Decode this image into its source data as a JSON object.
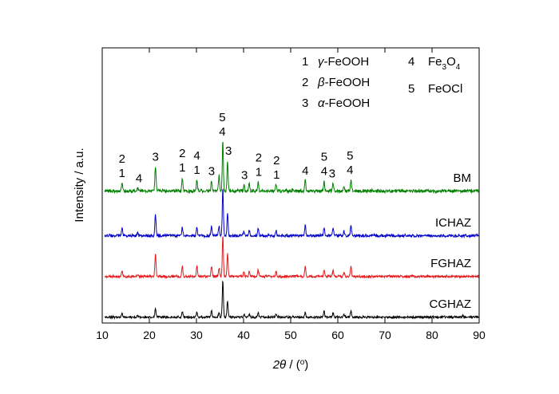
{
  "chart_data": {
    "type": "line",
    "title": "",
    "xlabel": {
      "symbol": "2θ",
      "unit_open": " / (",
      "unit_sup": "o",
      "unit_close": ")"
    },
    "ylabel": "Intensity / a.u.",
    "xlim": [
      10,
      90
    ],
    "xticks": [
      10,
      20,
      30,
      40,
      50,
      60,
      70,
      80,
      90
    ],
    "y_ticks_shown": false,
    "grid": false,
    "legend": {
      "position": "top-right",
      "entries": [
        {
          "num": "1",
          "greek": "γ",
          "text": "-FeOOH"
        },
        {
          "num": "2",
          "greek": "β",
          "text": "-FeOOH"
        },
        {
          "num": "3",
          "greek": "α",
          "text": "-FeOOH"
        },
        {
          "num": "4",
          "text": "Fe",
          "sub1": "3",
          "text2": "O",
          "sub2": "4"
        },
        {
          "num": "5",
          "text": "FeOCl"
        }
      ]
    },
    "peak_positions_deg": [
      14.2,
      17.5,
      21.3,
      27.0,
      30.1,
      33.2,
      34.8,
      35.6,
      36.6,
      40.1,
      41.2,
      43.1,
      46.9,
      53.1,
      57.1,
      59.0,
      61.3,
      62.8
    ],
    "series": [
      {
        "name": "CGHAZ",
        "color": "#000000",
        "peaks": [
          [
            14.2,
            0.1
          ],
          [
            17.5,
            0.04
          ],
          [
            21.3,
            0.22
          ],
          [
            27.0,
            0.16
          ],
          [
            30.1,
            0.14
          ],
          [
            33.2,
            0.18
          ],
          [
            34.8,
            0.12
          ],
          [
            35.6,
            1.0
          ],
          [
            36.6,
            0.45
          ],
          [
            40.1,
            0.07
          ],
          [
            41.2,
            0.07
          ],
          [
            43.1,
            0.12
          ],
          [
            46.9,
            0.09
          ],
          [
            53.1,
            0.12
          ],
          [
            57.1,
            0.16
          ],
          [
            59.0,
            0.11
          ],
          [
            61.3,
            0.07
          ],
          [
            62.8,
            0.19
          ],
          [
            86.5,
            0.04
          ]
        ]
      },
      {
        "name": "FGHAZ",
        "color": "#e41a1c",
        "peaks": [
          [
            14.2,
            0.13
          ],
          [
            17.5,
            0.05
          ],
          [
            21.3,
            0.55
          ],
          [
            27.0,
            0.26
          ],
          [
            30.1,
            0.27
          ],
          [
            33.2,
            0.25
          ],
          [
            34.8,
            0.18
          ],
          [
            35.6,
            1.0
          ],
          [
            36.6,
            0.55
          ],
          [
            40.1,
            0.12
          ],
          [
            41.2,
            0.12
          ],
          [
            43.1,
            0.16
          ],
          [
            46.9,
            0.12
          ],
          [
            53.1,
            0.24
          ],
          [
            57.1,
            0.18
          ],
          [
            59.0,
            0.14
          ],
          [
            61.3,
            0.1
          ],
          [
            62.8,
            0.24
          ]
        ]
      },
      {
        "name": "ICHAZ",
        "color": "#0000cc",
        "peaks": [
          [
            14.2,
            0.16
          ],
          [
            17.5,
            0.06
          ],
          [
            21.3,
            0.45
          ],
          [
            27.0,
            0.18
          ],
          [
            30.1,
            0.19
          ],
          [
            33.2,
            0.2
          ],
          [
            34.8,
            0.22
          ],
          [
            35.6,
            1.0
          ],
          [
            36.6,
            0.47
          ],
          [
            40.1,
            0.1
          ],
          [
            41.2,
            0.12
          ],
          [
            43.1,
            0.17
          ],
          [
            46.9,
            0.1
          ],
          [
            53.1,
            0.21
          ],
          [
            57.1,
            0.17
          ],
          [
            59.0,
            0.16
          ],
          [
            61.3,
            0.09
          ],
          [
            62.8,
            0.21
          ]
        ]
      },
      {
        "name": "BM",
        "color": "#008000",
        "peaks": [
          [
            14.2,
            0.14
          ],
          [
            17.5,
            0.05
          ],
          [
            21.3,
            0.42
          ],
          [
            27.0,
            0.23
          ],
          [
            30.1,
            0.19
          ],
          [
            33.2,
            0.17
          ],
          [
            34.8,
            0.25
          ],
          [
            35.6,
            0.85
          ],
          [
            36.6,
            0.52
          ],
          [
            40.1,
            0.1
          ],
          [
            41.2,
            0.12
          ],
          [
            43.1,
            0.16
          ],
          [
            46.9,
            0.11
          ],
          [
            53.1,
            0.18
          ],
          [
            57.1,
            0.17
          ],
          [
            59.0,
            0.13
          ],
          [
            61.3,
            0.08
          ],
          [
            62.8,
            0.19
          ]
        ]
      }
    ],
    "peak_labels": [
      {
        "x": 14.2,
        "lines": [
          "2",
          "1"
        ]
      },
      {
        "x": 17.8,
        "lines": [
          "4"
        ]
      },
      {
        "x": 21.3,
        "lines": [
          "3"
        ]
      },
      {
        "x": 27.0,
        "lines": [
          "2",
          "1"
        ]
      },
      {
        "x": 30.1,
        "lines": [
          "4",
          "1"
        ]
      },
      {
        "x": 33.2,
        "lines": [
          "3"
        ]
      },
      {
        "x": 35.5,
        "lines": [
          "5",
          "4"
        ]
      },
      {
        "x": 36.8,
        "lines": [
          "3"
        ]
      },
      {
        "x": 40.2,
        "lines": [
          "3"
        ]
      },
      {
        "x": 43.2,
        "lines": [
          "2",
          "1"
        ]
      },
      {
        "x": 47.0,
        "lines": [
          "2",
          "1"
        ]
      },
      {
        "x": 53.1,
        "lines": [
          "4"
        ]
      },
      {
        "x": 57.1,
        "lines": [
          "5",
          "4"
        ]
      },
      {
        "x": 58.8,
        "lines": [
          "3"
        ]
      },
      {
        "x": 62.6,
        "lines": [
          "5",
          "4"
        ]
      }
    ]
  }
}
